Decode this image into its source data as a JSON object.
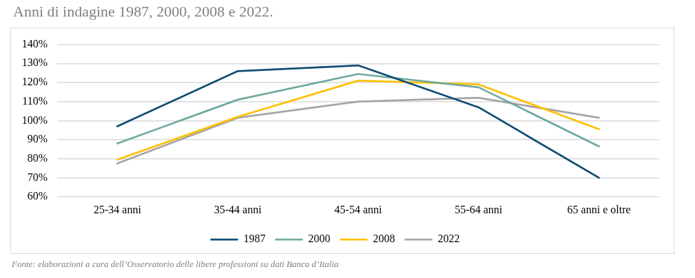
{
  "chart_data": {
    "type": "line",
    "title": "Anni di indagine 1987, 2000, 2008 e 2022.",
    "categories": [
      "25-34 anni",
      "35-44 anni",
      "45-54 anni",
      "55-64 anni",
      "65 anni e oltre"
    ],
    "series": [
      {
        "name": "1987",
        "color": "#0f4c75",
        "values": [
          97,
          126,
          129,
          107,
          70
        ]
      },
      {
        "name": "2000",
        "color": "#6fa9a0",
        "values": [
          88,
          111,
          124.5,
          117.5,
          86.5
        ]
      },
      {
        "name": "2008",
        "color": "#ffc000",
        "values": [
          79.5,
          102,
          121,
          119,
          95.5
        ]
      },
      {
        "name": "2022",
        "color": "#a5a5a5",
        "values": [
          77.5,
          101.5,
          110,
          112,
          101.5
        ]
      }
    ],
    "ylim": [
      60,
      140
    ],
    "yticks": [
      {
        "value": 60,
        "label": "60%"
      },
      {
        "value": 70,
        "label": "70%"
      },
      {
        "value": 80,
        "label": "80%"
      },
      {
        "value": 90,
        "label": "90%"
      },
      {
        "value": 100,
        "label": "100%"
      },
      {
        "value": 110,
        "label": "110%"
      },
      {
        "value": 120,
        "label": "120%"
      },
      {
        "value": 130,
        "label": "130%"
      },
      {
        "value": 140,
        "label": "140%"
      }
    ],
    "grid": "y",
    "legend": "bottom",
    "marker": "none",
    "line_style": "solid",
    "annotations": [
      "Fonte: elaborazioni a cura dell’Osservatorio delle libere professioni su dati Banca d’Italia"
    ]
  }
}
